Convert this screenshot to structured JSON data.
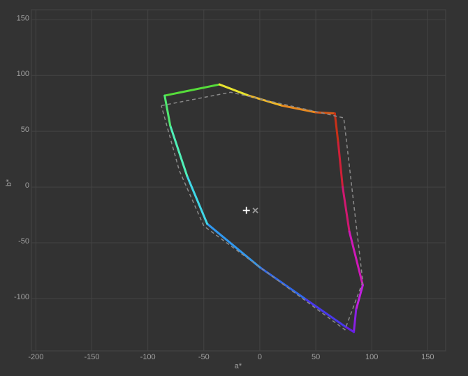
{
  "chart_data": {
    "type": "line",
    "x_label": "a*",
    "y_label": "b*",
    "xlim": [
      -204,
      166
    ],
    "ylim": [
      -147,
      159
    ],
    "xticks": [
      -200,
      -150,
      -100,
      -50,
      0,
      50,
      100,
      150
    ],
    "yticks": [
      -100,
      -50,
      0,
      50,
      100,
      150
    ],
    "grid": true,
    "series": [
      {
        "style": "solid",
        "width": 3,
        "x": [
          -85,
          -36,
          -10,
          20,
          50,
          67,
          70,
          74,
          80,
          92,
          86,
          84,
          76,
          40,
          0,
          -47,
          -65,
          -80,
          -85
        ],
        "y": [
          82,
          92,
          82,
          73,
          67,
          66,
          40,
          0,
          -40,
          -88,
          -110,
          -130,
          -125,
          -100,
          -72,
          -33,
          10,
          55,
          82
        ],
        "colors": [
          "#56dc3a",
          "#e8e430",
          "#f0b828",
          "#e88a20",
          "#d85a18",
          "#c83018",
          "#d02038",
          "#d01870",
          "#d018b8",
          "#c020e0",
          "#8a20e4",
          "#6420e6",
          "#4838ea",
          "#3068ea",
          "#3098f0",
          "#40d8e8",
          "#50f0b8",
          "#50e870",
          "#56dc3a"
        ]
      },
      {
        "style": "dashed",
        "width": 1.5,
        "color": "#8a8a8a",
        "x": [
          -88,
          -26,
          75,
          92,
          76,
          -50,
          -72,
          -88
        ],
        "y": [
          73,
          85,
          62,
          -85,
          -128,
          -35,
          15,
          73
        ]
      },
      {
        "style": "marker",
        "symbol": "plus",
        "color": "#ffffff",
        "x": [
          -12
        ],
        "y": [
          -21
        ]
      },
      {
        "style": "marker",
        "symbol": "cross",
        "color": "#9a9a9a",
        "x": [
          -4
        ],
        "y": [
          -21
        ]
      }
    ]
  }
}
